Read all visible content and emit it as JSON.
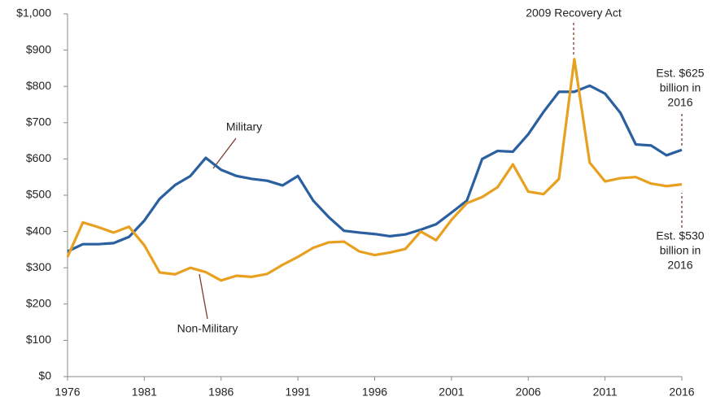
{
  "chart_data": {
    "type": "line",
    "x": [
      1976,
      1977,
      1978,
      1979,
      1980,
      1981,
      1982,
      1983,
      1984,
      1985,
      1986,
      1987,
      1988,
      1989,
      1990,
      1991,
      1992,
      1993,
      1994,
      1995,
      1996,
      1997,
      1998,
      1999,
      2000,
      2001,
      2002,
      2003,
      2004,
      2005,
      2006,
      2007,
      2008,
      2009,
      2010,
      2011,
      2012,
      2013,
      2014,
      2015,
      2016
    ],
    "series": [
      {
        "name": "Military",
        "color": "#2a5fa0",
        "values": [
          345,
          365,
          365,
          368,
          385,
          430,
          490,
          528,
          553,
          603,
          570,
          553,
          545,
          540,
          527,
          553,
          485,
          440,
          402,
          397,
          393,
          387,
          392,
          405,
          420,
          452,
          485,
          600,
          622,
          620,
          668,
          730,
          785,
          785,
          802,
          780,
          727,
          640,
          637,
          610,
          625
        ]
      },
      {
        "name": "Non-Military",
        "color": "#e8a020",
        "values": [
          330,
          425,
          412,
          397,
          413,
          362,
          287,
          282,
          300,
          288,
          265,
          278,
          275,
          283,
          308,
          330,
          355,
          370,
          372,
          345,
          335,
          342,
          352,
          400,
          376,
          432,
          478,
          495,
          522,
          585,
          510,
          503,
          545,
          875,
          590,
          538,
          547,
          550,
          532,
          525,
          530
        ]
      }
    ],
    "xlim": [
      1976,
      2016
    ],
    "xticks": [
      1976,
      1981,
      1986,
      1991,
      1996,
      2001,
      2006,
      2011,
      2016
    ],
    "ylim": [
      0,
      1000
    ],
    "yticks": [
      {
        "value": 0,
        "label": "$0"
      },
      {
        "value": 100,
        "label": "$100"
      },
      {
        "value": 200,
        "label": "$200"
      },
      {
        "value": 300,
        "label": "$300"
      },
      {
        "value": 400,
        "label": "$400"
      },
      {
        "value": 500,
        "label": "$500"
      },
      {
        "value": 600,
        "label": "$600"
      },
      {
        "value": 700,
        "label": "$700"
      },
      {
        "value": 800,
        "label": "$800"
      },
      {
        "value": 900,
        "label": "$900"
      },
      {
        "value": 1000,
        "label": "$1,000"
      }
    ],
    "grid": false,
    "annotations": [
      {
        "lines": [
          "Military"
        ]
      },
      {
        "lines": [
          "Non-Military"
        ]
      },
      {
        "lines": [
          "2009 Recovery Act"
        ]
      },
      {
        "lines": [
          "Est. $625",
          "billion in",
          "2016"
        ]
      },
      {
        "lines": [
          "Est. $530",
          "billion in",
          "2016"
        ]
      }
    ]
  }
}
